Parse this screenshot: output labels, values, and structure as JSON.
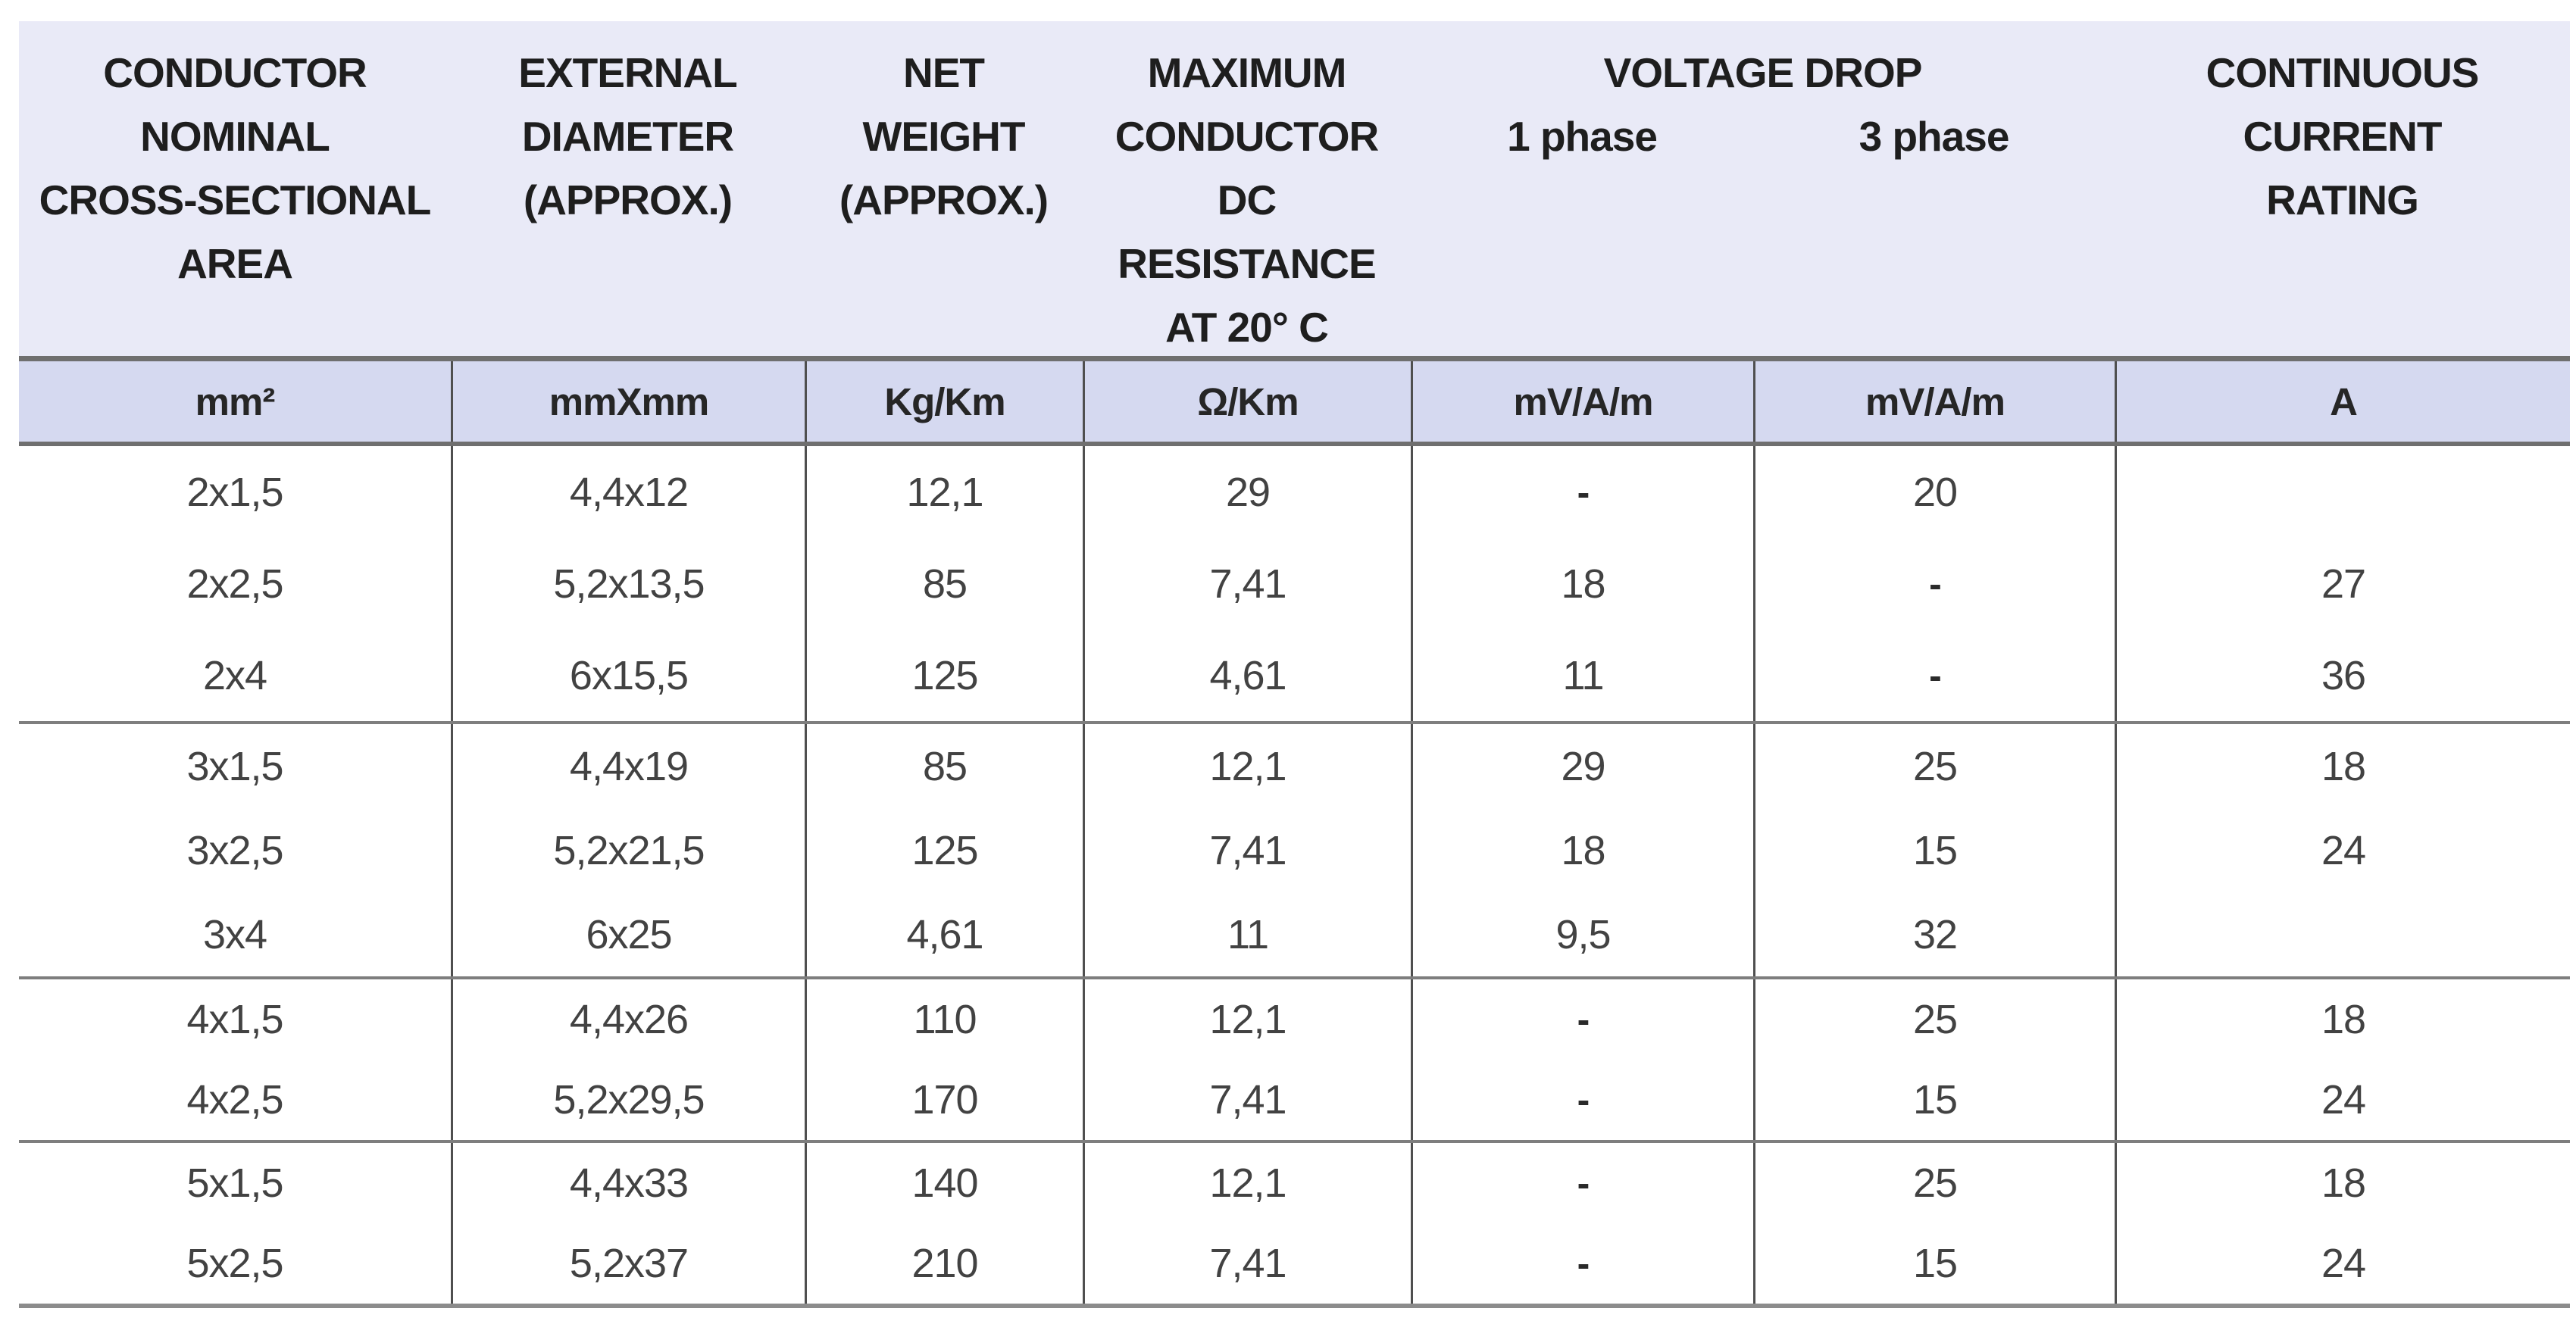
{
  "colors": {
    "header_band_bg": "#e9eaf7",
    "units_band_bg": "#d5d9f0",
    "grid_line": "#4f4f4f",
    "separator_line": "#7e7e7e",
    "heavy_line": "#6f6f6f",
    "header_text": "#1e1e1e",
    "data_text": "#424242"
  },
  "header": {
    "columns": [
      {
        "lines": [
          "CONDUCTOR",
          "NOMINAL",
          "CROSS-SECTIONAL",
          "AREA"
        ]
      },
      {
        "lines": [
          "EXTERNAL",
          "DIAMETER",
          "(APPROX.)"
        ]
      },
      {
        "lines": [
          "NET",
          "WEIGHT",
          "(APPROX.)"
        ]
      },
      {
        "lines": [
          "MAXIMUM",
          "CONDUCTOR",
          "DC",
          "RESISTANCE",
          "AT 20° C"
        ]
      },
      {
        "group_title": "VOLTAGE DROP",
        "sub_left": "1 phase",
        "sub_right": "3 phase"
      },
      {
        "lines": [
          "CONTINUOUS",
          "CURRENT",
          "RATING"
        ]
      }
    ]
  },
  "units": [
    "mm²",
    "mmXmm",
    "Kg/Km",
    "Ω/Km",
    "mV/A/m",
    "mV/A/m",
    "A"
  ],
  "groups": [
    {
      "rows": [
        [
          "2x1,5",
          "4,4x12",
          "12,1",
          "29",
          "-",
          "20",
          ""
        ],
        [
          "2x2,5",
          "5,2x13,5",
          "85",
          "7,41",
          "18",
          "-",
          "27"
        ],
        [
          "2x4",
          "6x15,5",
          "125",
          "4,61",
          "11",
          "-",
          "36"
        ]
      ]
    },
    {
      "rows": [
        [
          "3x1,5",
          "4,4x19",
          "85",
          "12,1",
          "29",
          "25",
          "18"
        ],
        [
          "3x2,5",
          "5,2x21,5",
          "125",
          "7,41",
          "18",
          "15",
          "24"
        ],
        [
          "3x4",
          "6x25",
          "4,61",
          "11",
          "9,5",
          "32",
          ""
        ]
      ]
    },
    {
      "rows": [
        [
          "4x1,5",
          "4,4x26",
          "110",
          "12,1",
          "-",
          "25",
          "18"
        ],
        [
          "4x2,5",
          "5,2x29,5",
          "170",
          "7,41",
          "-",
          "15",
          "24"
        ]
      ]
    },
    {
      "rows": [
        [
          "5x1,5",
          "4,4x33",
          "140",
          "12,1",
          "-",
          "25",
          "18"
        ],
        [
          "5x2,5",
          "5,2x37",
          "210",
          "7,41",
          "-",
          "15",
          "24"
        ]
      ]
    }
  ]
}
